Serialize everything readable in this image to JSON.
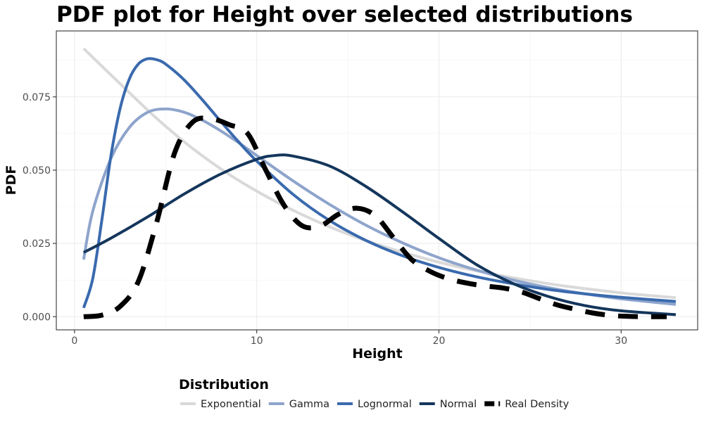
{
  "chart_data": {
    "type": "line",
    "title": "PDF plot for Height over selected distributions",
    "xlabel": "Height",
    "ylabel": "PDF",
    "xlim": [
      -1,
      34.2
    ],
    "ylim": [
      -0.0045,
      0.0975
    ],
    "x_ticks": [
      0,
      10,
      20,
      30
    ],
    "x_tick_labels": [
      "0",
      "10",
      "20",
      "30"
    ],
    "y_ticks": [
      0,
      0.025,
      0.05,
      0.075
    ],
    "y_tick_labels": [
      "0.000",
      "0.025",
      "0.050",
      "0.075"
    ],
    "grid": true,
    "legend": {
      "title": "Distribution",
      "position": "bottom"
    },
    "series": [
      {
        "name": "Exponential",
        "color": "#d9d9d9",
        "dash": "solid",
        "x": [
          0.5,
          2.5,
          4.5,
          6.5,
          8.5,
          10.5,
          12.5,
          14.5,
          16.5,
          18.5,
          20.5,
          22.5,
          24.5,
          26.5,
          28.5,
          30.5,
          33
        ],
        "y": [
          0.0915,
          0.0795,
          0.0677,
          0.0573,
          0.0485,
          0.0411,
          0.0348,
          0.0294,
          0.0249,
          0.0211,
          0.0178,
          0.0151,
          0.0128,
          0.0108,
          0.0092,
          0.0078,
          0.0065
        ]
      },
      {
        "name": "Gamma",
        "color": "#8ea4cc",
        "dash": "solid",
        "x": [
          0.5,
          1,
          2,
          3,
          4,
          5,
          6,
          7,
          8,
          9,
          10,
          12,
          14,
          16,
          18,
          20,
          22,
          24,
          26,
          28,
          30,
          33
        ],
        "y": [
          0.0195,
          0.036,
          0.054,
          0.0645,
          0.0697,
          0.0709,
          0.0698,
          0.0671,
          0.0635,
          0.0594,
          0.055,
          0.0463,
          0.0383,
          0.0312,
          0.0252,
          0.0201,
          0.016,
          0.0126,
          0.0099,
          0.0078,
          0.0061,
          0.0042
        ]
      },
      {
        "name": "Lognormal",
        "color": "#3a6aae",
        "dash": "solid",
        "x": [
          0.5,
          1,
          1.5,
          2,
          2.5,
          3,
          3.5,
          4,
          4.5,
          5,
          6,
          7,
          8,
          9,
          10,
          12,
          14,
          16,
          18,
          20,
          22,
          24,
          26,
          28,
          30,
          33
        ],
        "y": [
          0.003,
          0.013,
          0.033,
          0.055,
          0.071,
          0.081,
          0.0862,
          0.088,
          0.0877,
          0.0862,
          0.0809,
          0.0741,
          0.0668,
          0.0597,
          0.0531,
          0.0417,
          0.0328,
          0.026,
          0.0208,
          0.0168,
          0.0137,
          0.0113,
          0.0093,
          0.0078,
          0.0066,
          0.0052
        ]
      },
      {
        "name": "Normal",
        "color": "#14365c",
        "dash": "solid",
        "x": [
          0.5,
          2,
          4,
          6,
          8,
          10,
          11,
          12,
          14,
          16,
          18,
          20,
          22,
          24,
          26,
          28,
          30,
          33
        ],
        "y": [
          0.0219,
          0.0268,
          0.034,
          0.0418,
          0.0486,
          0.0537,
          0.055,
          0.0548,
          0.0514,
          0.0444,
          0.0358,
          0.0267,
          0.018,
          0.0115,
          0.0069,
          0.0038,
          0.002,
          0.0007
        ]
      },
      {
        "name": "Real Density",
        "color": "#000000",
        "dash": "dashed",
        "x": [
          0.5,
          1.5,
          2.5,
          3.5,
          4.5,
          5.5,
          6.5,
          7.5,
          8.5,
          9.5,
          10.5,
          11.5,
          12.5,
          13.5,
          14.5,
          15.5,
          16.5,
          17.5,
          18.5,
          19.5,
          20.5,
          21.5,
          22.5,
          23.5,
          24.5,
          25.5,
          26.5,
          27.5,
          28.5,
          29.5,
          30.5,
          31.5,
          32.5
        ],
        "y": [
          0.0,
          0.0005,
          0.0035,
          0.012,
          0.032,
          0.056,
          0.0665,
          0.0675,
          0.0655,
          0.0625,
          0.05,
          0.038,
          0.031,
          0.031,
          0.035,
          0.037,
          0.0345,
          0.027,
          0.0195,
          0.0155,
          0.013,
          0.0115,
          0.0105,
          0.0098,
          0.0085,
          0.0062,
          0.004,
          0.0025,
          0.0012,
          0.0004,
          0.0001,
          0.0,
          0.0
        ]
      }
    ]
  }
}
